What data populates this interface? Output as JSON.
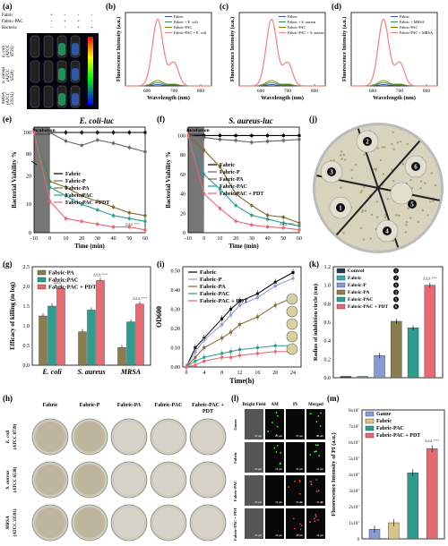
{
  "panel_labels": {
    "a": "(a)",
    "b": "(b)",
    "c": "(c)",
    "d": "(d)",
    "e": "(e)",
    "f": "(f)",
    "g": "(g)",
    "h": "(h)",
    "i": "(i)",
    "j": "(j)",
    "k": "(k)",
    "l": "(l)",
    "m": "(m)"
  },
  "panel_a": {
    "row_labels": [
      "Fabric",
      "Fabric-PAC",
      "Bacteria"
    ],
    "signs": [
      [
        "+",
        "-",
        "-",
        "-"
      ],
      [
        "-",
        "+",
        "+",
        "-"
      ],
      [
        "-",
        "-",
        "+",
        "+"
      ]
    ],
    "strain_labels": [
      "E. coli (ATCC 8739)",
      "S. aureus (ATCC 6538)",
      "MRSA (ATCC 33591)"
    ]
  },
  "chart_data": [
    {
      "id": "b",
      "type": "line",
      "xlabel": "Wavelength (nm)",
      "ylabel": "Fluorescence Intensity (a.u.)",
      "xticks": [
        "600",
        "700",
        "800"
      ],
      "xlim": [
        520,
        840
      ],
      "ylim": [
        0,
        1
      ],
      "legend": [
        "Fabric",
        "Fabric + E. coli",
        "Fabric-PAC",
        "Fabric-PAC + E. coli"
      ],
      "series": [
        {
          "name": "Fabric",
          "color": "#3b4ba8",
          "peak": 0.02
        },
        {
          "name": "Fabric + E. coli",
          "color": "#2e8b57",
          "peak": 0.05
        },
        {
          "name": "Fabric-PAC",
          "color": "#808000",
          "peak": 0.08
        },
        {
          "name": "Fabric-PAC + E. coli",
          "color": "#f08080",
          "peak": 1.0
        }
      ]
    },
    {
      "id": "c",
      "type": "line",
      "xlabel": "Wavelength (nm)",
      "ylabel": "Fluorescence Intensity (a.u.)",
      "xticks": [
        "600",
        "700",
        "800"
      ],
      "xlim": [
        520,
        840
      ],
      "ylim": [
        0,
        1
      ],
      "legend": [
        "Fabric",
        "Fabric + S. aureus",
        "Fabric-PAC",
        "Fabric-PAC + S. aureus"
      ],
      "series": [
        {
          "name": "Fabric",
          "color": "#3b4ba8",
          "peak": 0.02
        },
        {
          "name": "Fabric + S. aureus",
          "color": "#2e8b57",
          "peak": 0.05
        },
        {
          "name": "Fabric-PAC",
          "color": "#808000",
          "peak": 0.08
        },
        {
          "name": "Fabric-PAC + S. aureus",
          "color": "#f08080",
          "peak": 1.0
        }
      ]
    },
    {
      "id": "d",
      "type": "line",
      "xlabel": "Wavelength (nm)",
      "ylabel": "Fluorescence Intensity (a.u.)",
      "xticks": [
        "600",
        "700",
        "800"
      ],
      "xlim": [
        520,
        840
      ],
      "ylim": [
        0,
        1
      ],
      "legend": [
        "Fabric",
        "Fabric + MRSA",
        "Fabric-PAC",
        "Fabric-PAC + MRSA"
      ],
      "series": [
        {
          "name": "Fabric",
          "color": "#3b4ba8",
          "peak": 0.02
        },
        {
          "name": "Fabric + MRSA",
          "color": "#2e8b57",
          "peak": 0.05
        },
        {
          "name": "Fabric-PAC",
          "color": "#808000",
          "peak": 0.08
        },
        {
          "name": "Fabric-PAC + MRSA",
          "color": "#f08080",
          "peak": 1.0
        }
      ]
    },
    {
      "id": "e",
      "type": "line",
      "title": "E. coli-luc",
      "incubation": "Incubation",
      "xlabel": "Time (min)",
      "ylabel": "Bacterial Viability %",
      "x": [
        -10,
        0,
        10,
        20,
        30,
        40,
        50,
        60
      ],
      "xticks": [
        -10,
        0,
        10,
        20,
        30,
        40,
        50,
        60
      ],
      "yticks_top": [
        80,
        100
      ],
      "yticks_bottom": [
        0,
        10,
        20
      ],
      "sig": "ΔΔΔ ***",
      "series": [
        {
          "name": "Fabric",
          "color": "#000000",
          "values": [
            100,
            100,
            100,
            100,
            100,
            100,
            100,
            100
          ]
        },
        {
          "name": "Fabric-P",
          "color": "#666666",
          "values": [
            100,
            100,
            92,
            88,
            93,
            90,
            86,
            82
          ]
        },
        {
          "name": "Fabric-PA",
          "color": "#7b6b2e",
          "values": [
            100,
            18,
            16,
            13,
            11,
            9,
            7,
            6
          ]
        },
        {
          "name": "Fabric-PAC",
          "color": "#2a9d8f",
          "values": [
            100,
            16,
            13,
            10,
            8,
            6,
            5,
            4
          ]
        },
        {
          "name": "Fabric-PAC + PDT",
          "color": "#e8656f",
          "values": [
            100,
            11,
            5,
            4,
            3,
            2,
            2,
            1
          ]
        }
      ]
    },
    {
      "id": "f",
      "type": "line",
      "title": "S. aureus-luc",
      "incubation": "Incubation",
      "xlabel": "Time (min)",
      "ylabel": "Bacterial Viability %",
      "x": [
        -10,
        0,
        10,
        20,
        30,
        40,
        50,
        60
      ],
      "xticks": [
        -10,
        0,
        10,
        20,
        30,
        40,
        50,
        60
      ],
      "yticks": [
        0,
        20,
        40,
        60,
        80,
        100
      ],
      "sig": "ΔΔΔ ***",
      "series": [
        {
          "name": "Fabric",
          "color": "#000000",
          "values": [
            100,
            100,
            100,
            100,
            100,
            100,
            100,
            100
          ]
        },
        {
          "name": "Fabric-P",
          "color": "#666666",
          "values": [
            100,
            98,
            96,
            95,
            93,
            94,
            95,
            96
          ]
        },
        {
          "name": "Fabric-PA",
          "color": "#7b6b2e",
          "values": [
            100,
            85,
            68,
            40,
            28,
            18,
            16,
            10
          ]
        },
        {
          "name": "Fabric-PAC",
          "color": "#2a9d8f",
          "values": [
            100,
            60,
            45,
            28,
            18,
            14,
            10,
            7
          ]
        },
        {
          "name": "Fabric-PAC + PDT",
          "color": "#e8656f",
          "values": [
            100,
            40,
            25,
            12,
            8,
            6,
            5,
            3
          ]
        }
      ]
    },
    {
      "id": "g",
      "type": "bar",
      "ylabel": "Efficacy of killing (m log)",
      "categories": [
        "E. coli",
        "S. aureus",
        "MRSA"
      ],
      "yticks": [
        0.0,
        0.5,
        1.0,
        1.5,
        2.0,
        2.5
      ],
      "ylim": [
        0,
        2.5
      ],
      "series": [
        {
          "name": "Fabric-PA",
          "color": "#8a7e4f",
          "values": [
            1.25,
            0.85,
            0.45
          ]
        },
        {
          "name": "Fabric-PAC",
          "color": "#2e9c8e",
          "values": [
            1.5,
            1.4,
            1.1
          ]
        },
        {
          "name": "Fabric-PAC + PDT",
          "color": "#e66a72",
          "values": [
            1.95,
            2.15,
            1.55
          ]
        }
      ],
      "sig": [
        "ΔΔΔ ***",
        "ΔΔΔ ***",
        "ΔΔΔ ***"
      ]
    },
    {
      "id": "i",
      "type": "line",
      "ylabel": "OD600",
      "xlabel": "Time(h)",
      "x": [
        0,
        2,
        4,
        8,
        10,
        12,
        16,
        20,
        24
      ],
      "xticks": [
        0,
        4,
        8,
        12,
        16,
        20,
        24
      ],
      "yticks": [
        0.0,
        0.1,
        0.2,
        0.3,
        0.4,
        0.5
      ],
      "ylim": [
        0,
        0.5
      ],
      "series": [
        {
          "name": "Fabric",
          "color": "#000000",
          "values": [
            0,
            0.1,
            0.15,
            0.25,
            0.3,
            0.34,
            0.38,
            0.44,
            0.49
          ]
        },
        {
          "name": "Fabric-P",
          "color": "#8a9ad4",
          "values": [
            0,
            0.08,
            0.14,
            0.22,
            0.27,
            0.32,
            0.36,
            0.42,
            0.46
          ]
        },
        {
          "name": "Fabric-PA",
          "color": "#7b6b2e",
          "values": [
            0,
            0.05,
            0.1,
            0.15,
            0.18,
            0.22,
            0.26,
            0.32,
            0.36
          ]
        },
        {
          "name": "Fabric-PAC",
          "color": "#2a9d8f",
          "values": [
            0,
            0.03,
            0.05,
            0.07,
            0.08,
            0.09,
            0.1,
            0.11,
            0.11
          ]
        },
        {
          "name": "Fabric-PAC + PDT",
          "color": "#e8656f",
          "values": [
            0,
            0.01,
            0.03,
            0.05,
            0.05,
            0.06,
            0.07,
            0.08,
            0.08
          ]
        }
      ]
    },
    {
      "id": "k",
      "type": "bar",
      "ylabel": "Radius of inhibition circle (cm)",
      "categories": [
        "Control",
        "Fabric",
        "Fabric-P",
        "Fabric-PA",
        "Fabric-PAC",
        "Fabric-PAC + PDT"
      ],
      "numbers": [
        "1",
        "2",
        "3",
        "4",
        "5",
        "6"
      ],
      "yticks": [
        0.0,
        0.2,
        0.4,
        0.6,
        0.8,
        1.0,
        1.2
      ],
      "ylim": [
        0,
        1.2
      ],
      "values": [
        0.0,
        0.0,
        0.24,
        0.61,
        0.54,
        1.0
      ],
      "colors": [
        "#1f3b4d",
        "#3fa7b5",
        "#8a9ad4",
        "#8a7e4f",
        "#2e9c8e",
        "#e66a72"
      ],
      "sig": "ΔΔΔ ***"
    },
    {
      "id": "m",
      "type": "bar",
      "ylabel": "Fluorescence Intensity of PI (a.u.)",
      "categories": [
        "Gauze",
        "Fabric",
        "Fabric-PAC",
        "Fabric-PAC + PDT"
      ],
      "yticks": [
        "0",
        "1x10⁷",
        "2x10⁷",
        "3x10⁷",
        "4x10⁷",
        "5x10⁷",
        "6x10⁷",
        "7x10⁷",
        "8x10⁷"
      ],
      "ylim": [
        0,
        8
      ],
      "values": [
        0.6,
        1.0,
        4.1,
        5.6
      ],
      "colors": [
        "#8a9ad4",
        "#d9c48a",
        "#2e9c8e",
        "#e66a72"
      ],
      "sig": "ΔΔΔ ***"
    }
  ],
  "panel_h": {
    "columns": [
      "Fabric",
      "Fabric-P",
      "Fabric-PA",
      "Fabric-PAC",
      "Fabric-PAC + PDT"
    ],
    "rows": [
      "E. coli (ATCC 8739)",
      "S. aureus (ATCC 6538)",
      "MRSA (ATCC 33591)"
    ]
  },
  "panel_j": {
    "numbers": [
      "1",
      "2",
      "3",
      "4",
      "5",
      "6"
    ]
  },
  "panel_l": {
    "columns": [
      "Bright Field",
      "AM",
      "PI",
      "Merged"
    ],
    "rows": [
      "Gauze",
      "Fabric",
      "Fabric-PAC",
      "Fabric-PAC + PDT"
    ],
    "scale": "20 μm"
  }
}
